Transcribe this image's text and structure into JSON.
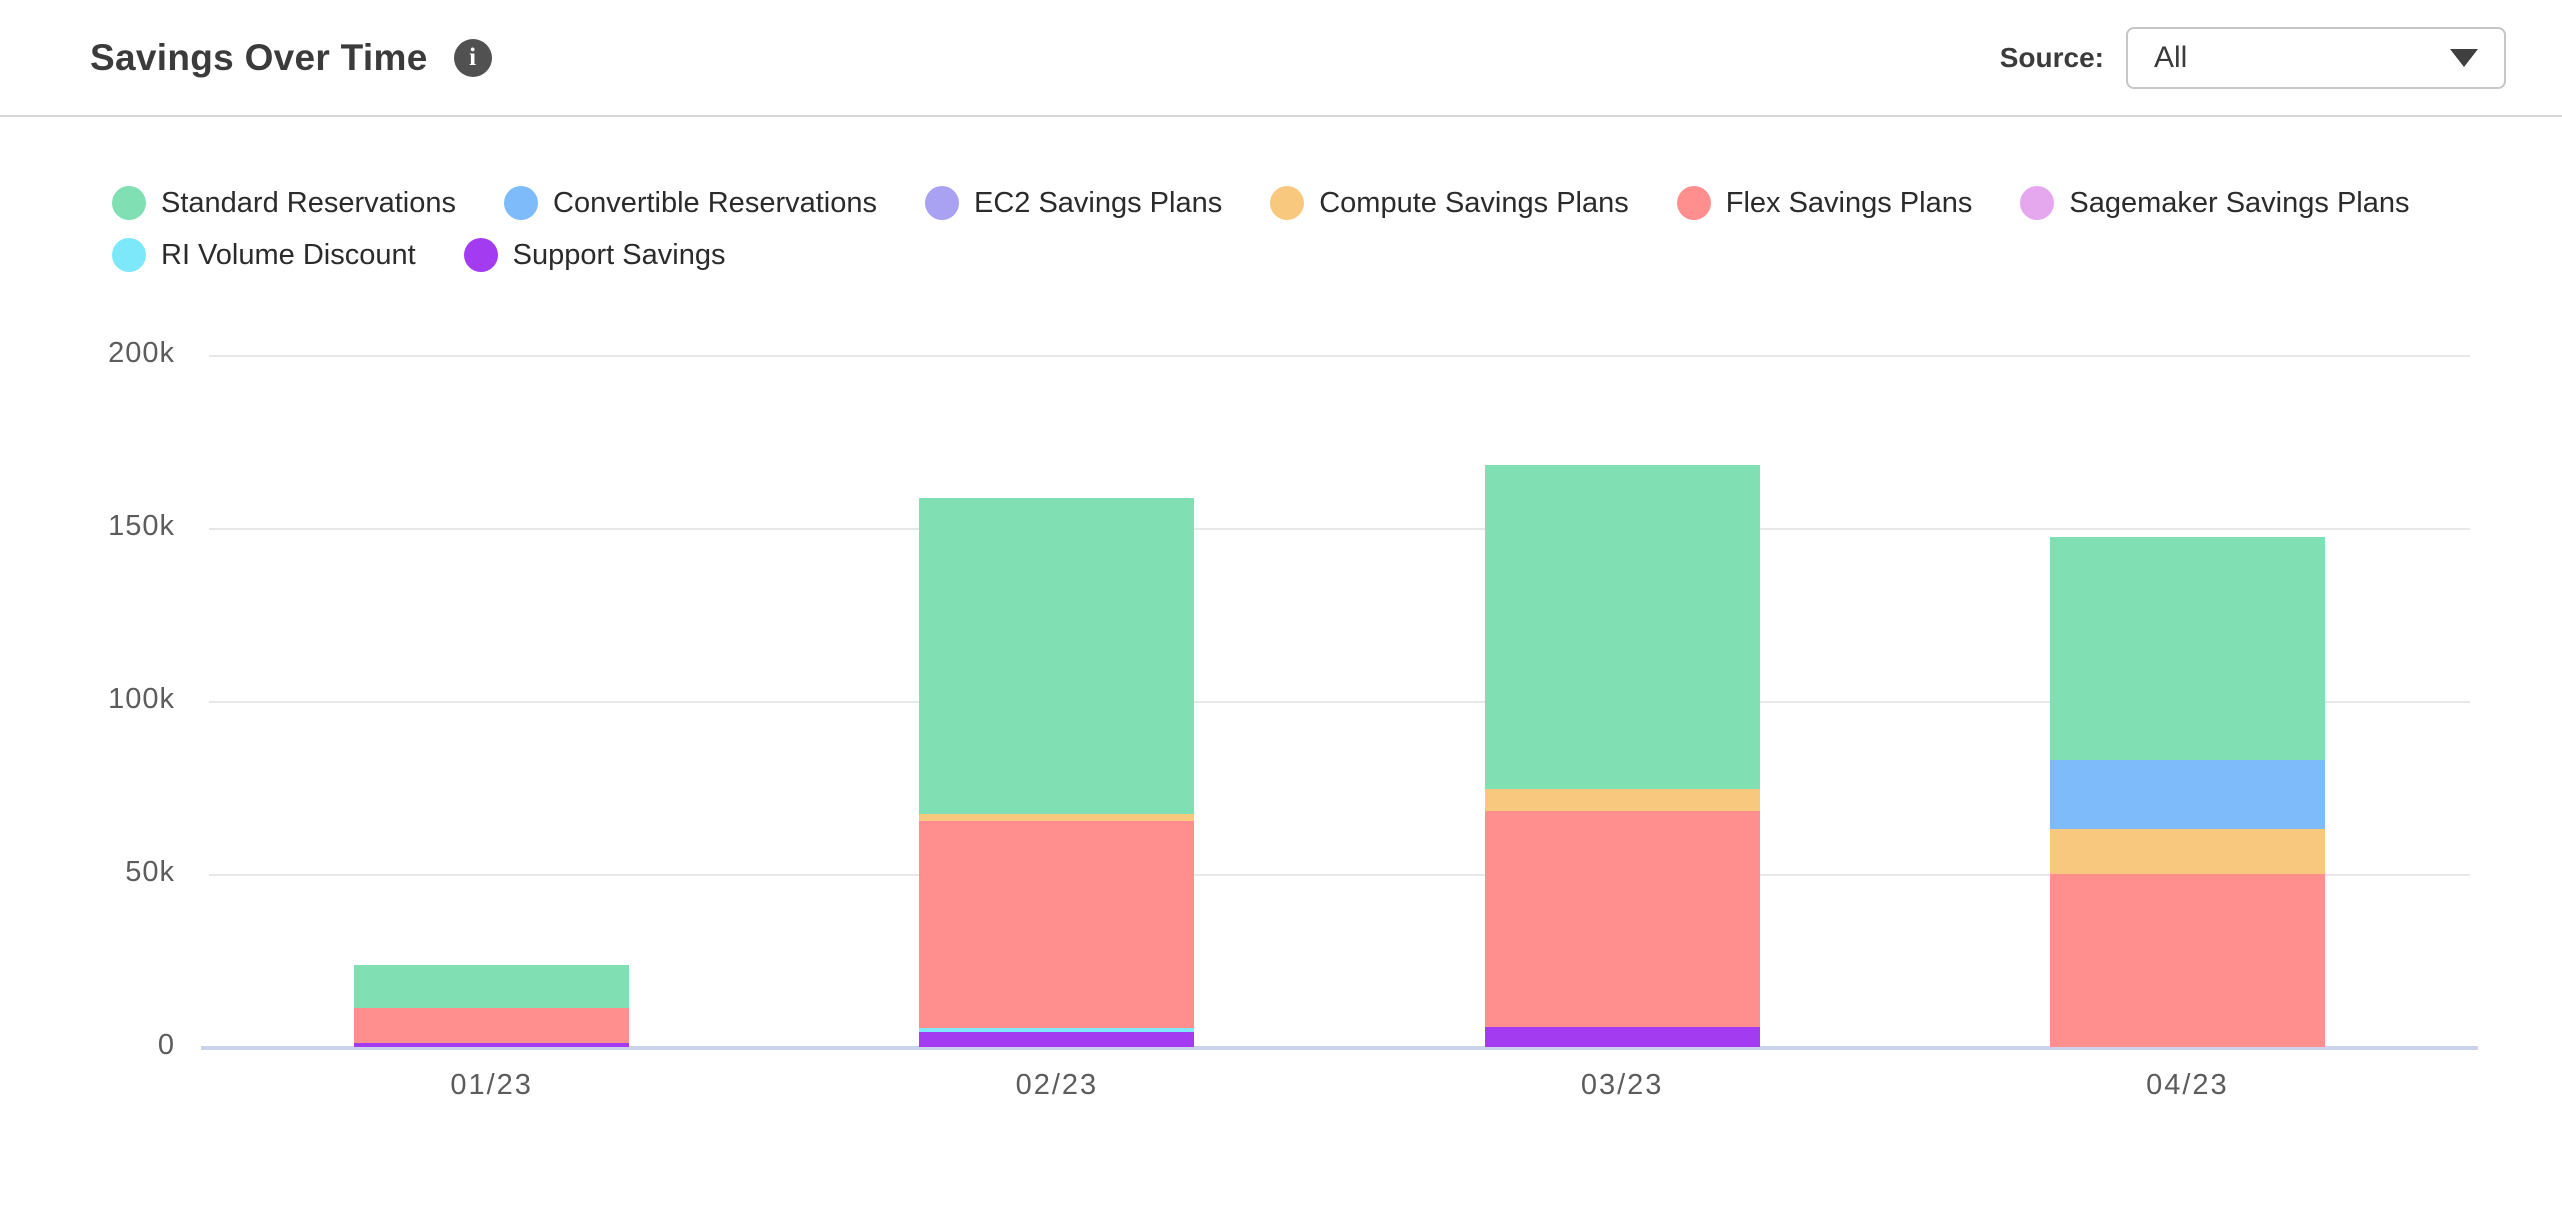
{
  "header": {
    "title": "Savings Over Time",
    "source_label": "Source:",
    "source_value": "All"
  },
  "chart_data": {
    "type": "bar",
    "stacked": true,
    "title": "Savings Over Time",
    "categories": [
      "01/23",
      "02/23",
      "03/23",
      "04/23"
    ],
    "series": [
      {
        "name": "Standard Reservations",
        "color": "#80DFB3",
        "values": [
          12300,
          91400,
          93700,
          64600
        ]
      },
      {
        "name": "Convertible Reservations",
        "color": "#7DBBFA",
        "values": [
          0,
          0,
          0,
          19900
        ]
      },
      {
        "name": "EC2 Savings Plans",
        "color": "#A9A2F2",
        "values": [
          0,
          0,
          0,
          0
        ]
      },
      {
        "name": "Compute Savings Plans",
        "color": "#F8C87E",
        "values": [
          0,
          2000,
          6400,
          13000
        ]
      },
      {
        "name": "Flex Savings Plans",
        "color": "#FE8F8E",
        "values": [
          10300,
          60000,
          62400,
          50000
        ]
      },
      {
        "name": "Sagemaker Savings Plans",
        "color": "#E5A7ED",
        "values": [
          0,
          0,
          0,
          0
        ]
      },
      {
        "name": "RI Volume Discount",
        "color": "#7CE8FA",
        "values": [
          0,
          1200,
          0,
          0
        ]
      },
      {
        "name": "Support Savings",
        "color": "#A33BF0",
        "values": [
          1100,
          4200,
          5800,
          0
        ]
      }
    ],
    "stack_note": "stacking bottom-to-top is the reverse of the series order",
    "y_ticks": [
      {
        "label": "200k",
        "value": 200000
      },
      {
        "label": "150k",
        "value": 150000
      },
      {
        "label": "100k",
        "value": 100000
      },
      {
        "label": "50k",
        "value": 50000
      },
      {
        "label": "0",
        "value": 0
      }
    ],
    "ylim": [
      0,
      200000
    ],
    "grid": true,
    "legend_position": "top"
  },
  "colors": {
    "gridline": "#E8E8E8",
    "axis_line": "#CBD2EC",
    "tick_label": "#5C5C5C",
    "divider": "#D6D6D6",
    "title_text": "#3B3B3B",
    "info_icon_bg": "#515151"
  }
}
